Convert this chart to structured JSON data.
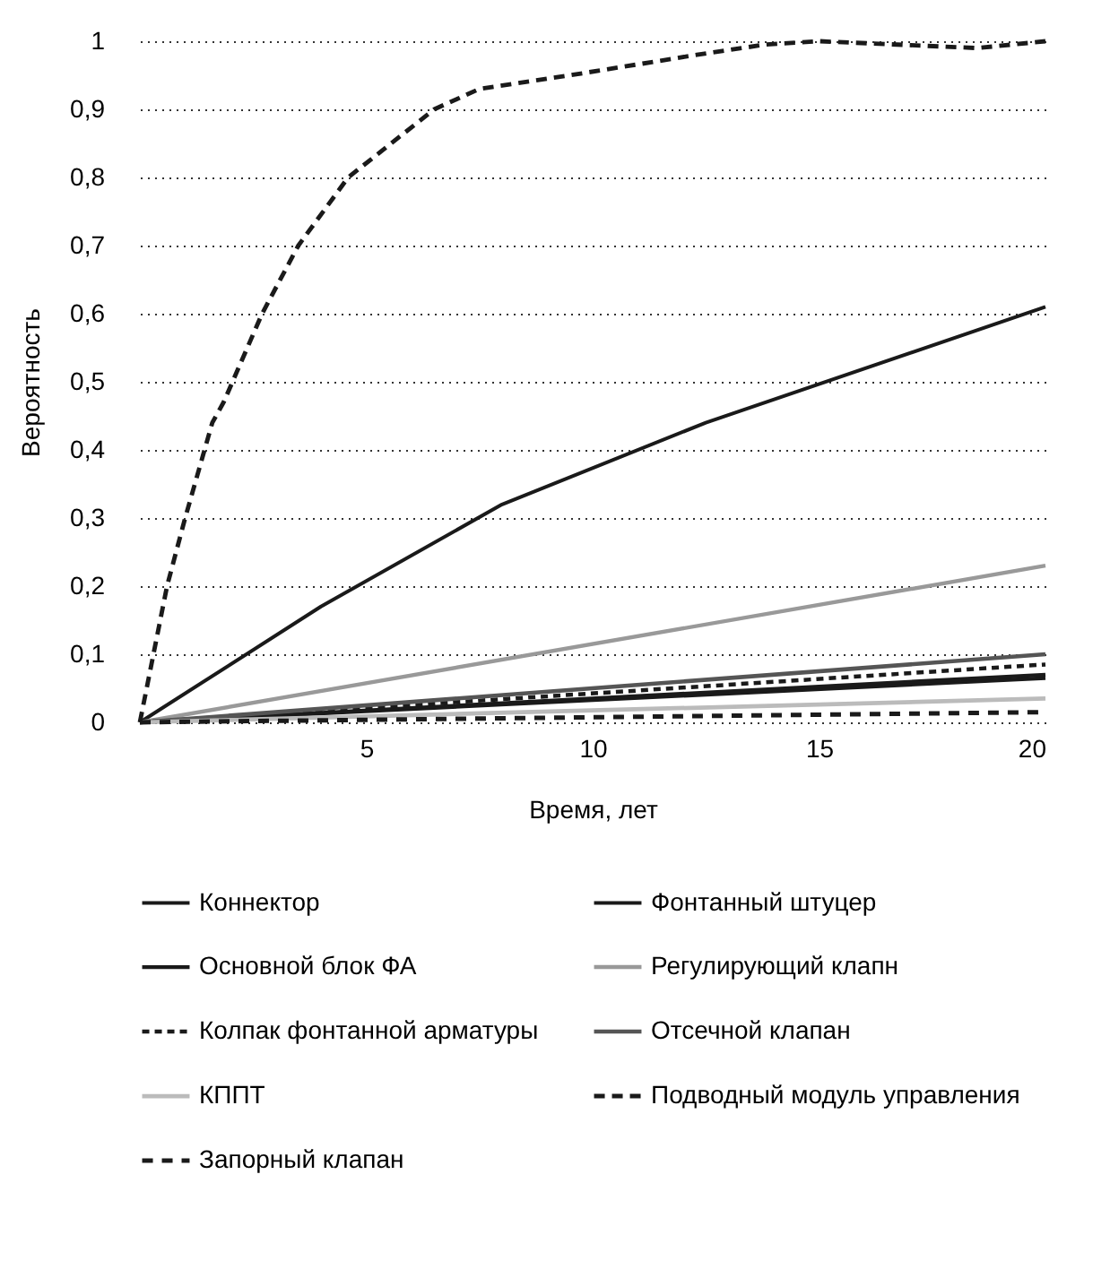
{
  "chart_data": {
    "type": "line",
    "xlabel": "Время, лет",
    "ylabel": "Вероятность",
    "xlim": [
      0,
      20
    ],
    "xticks": [
      5,
      10,
      15,
      20
    ],
    "ylim": [
      0,
      1
    ],
    "yticks": [
      0,
      {
        "value": 0.1,
        "label": "0,1"
      },
      {
        "value": 0.2,
        "label": "0,2"
      },
      {
        "value": 0.3,
        "label": "0,3"
      },
      {
        "value": 0.4,
        "label": "0,4"
      },
      {
        "value": 0.5,
        "label": "0,5"
      },
      {
        "value": 0.6,
        "label": "0,6"
      },
      {
        "value": 0.7,
        "label": "0,7"
      },
      {
        "value": 0.8,
        "label": "0,8"
      },
      {
        "value": 0.9,
        "label": "0,9"
      },
      1
    ],
    "grid": "y",
    "legend": "bottom",
    "marker": "none",
    "series": [
      {
        "name": "Коннектор",
        "color": "#1a1a1a",
        "line_style": "solid",
        "x": [
          0,
          4,
          8,
          12.5,
          20
        ],
        "values": [
          0,
          0.17,
          0.32,
          0.44,
          0.61
        ]
      },
      {
        "name": "Фонтанный штуцер",
        "color": "#1a1a1a",
        "line_style": "solid",
        "x": [
          0,
          20
        ],
        "values": [
          0,
          0.065
        ]
      },
      {
        "name": "Основной блок ФА",
        "color": "#1a1a1a",
        "line_style": "solid",
        "x": [
          0,
          20
        ],
        "values": [
          0,
          0.07
        ]
      },
      {
        "name": "Регулирующий клапн",
        "color": "#999999",
        "line_style": "solid",
        "x": [
          0,
          20
        ],
        "values": [
          0,
          0.23
        ]
      },
      {
        "name": "Колпак фонтанной арматуры",
        "color": "#1a1a1a",
        "line_style": "dashed",
        "x": [
          0,
          20
        ],
        "values": [
          0,
          0.085
        ]
      },
      {
        "name": "Отсечной клапан",
        "color": "#555555",
        "line_style": "solid",
        "x": [
          0,
          20
        ],
        "values": [
          0,
          0.1
        ]
      },
      {
        "name": "КППТ",
        "color": "#bbbbbb",
        "line_style": "solid",
        "x": [
          0,
          20
        ],
        "values": [
          0,
          0.035
        ]
      },
      {
        "name": "Подводный модуль управления",
        "color": "#1a1a1a",
        "line_style": "dashed",
        "x": [
          0,
          0.6,
          1,
          1.6,
          1.85,
          2.7,
          3.5,
          4.6,
          6.5,
          7.5,
          9.5,
          12.3,
          13.8,
          15,
          18.5,
          20
        ],
        "values": [
          0,
          0.2,
          0.3,
          0.44,
          0.47,
          0.6,
          0.7,
          0.8,
          0.9,
          0.93,
          0.95,
          0.98,
          0.995,
          1,
          0.99,
          1
        ]
      },
      {
        "name": "Запорный клапан",
        "color": "#1a1a1a",
        "line_style": "dashed",
        "x": [
          0,
          20
        ],
        "values": [
          0,
          0.015
        ]
      }
    ]
  }
}
